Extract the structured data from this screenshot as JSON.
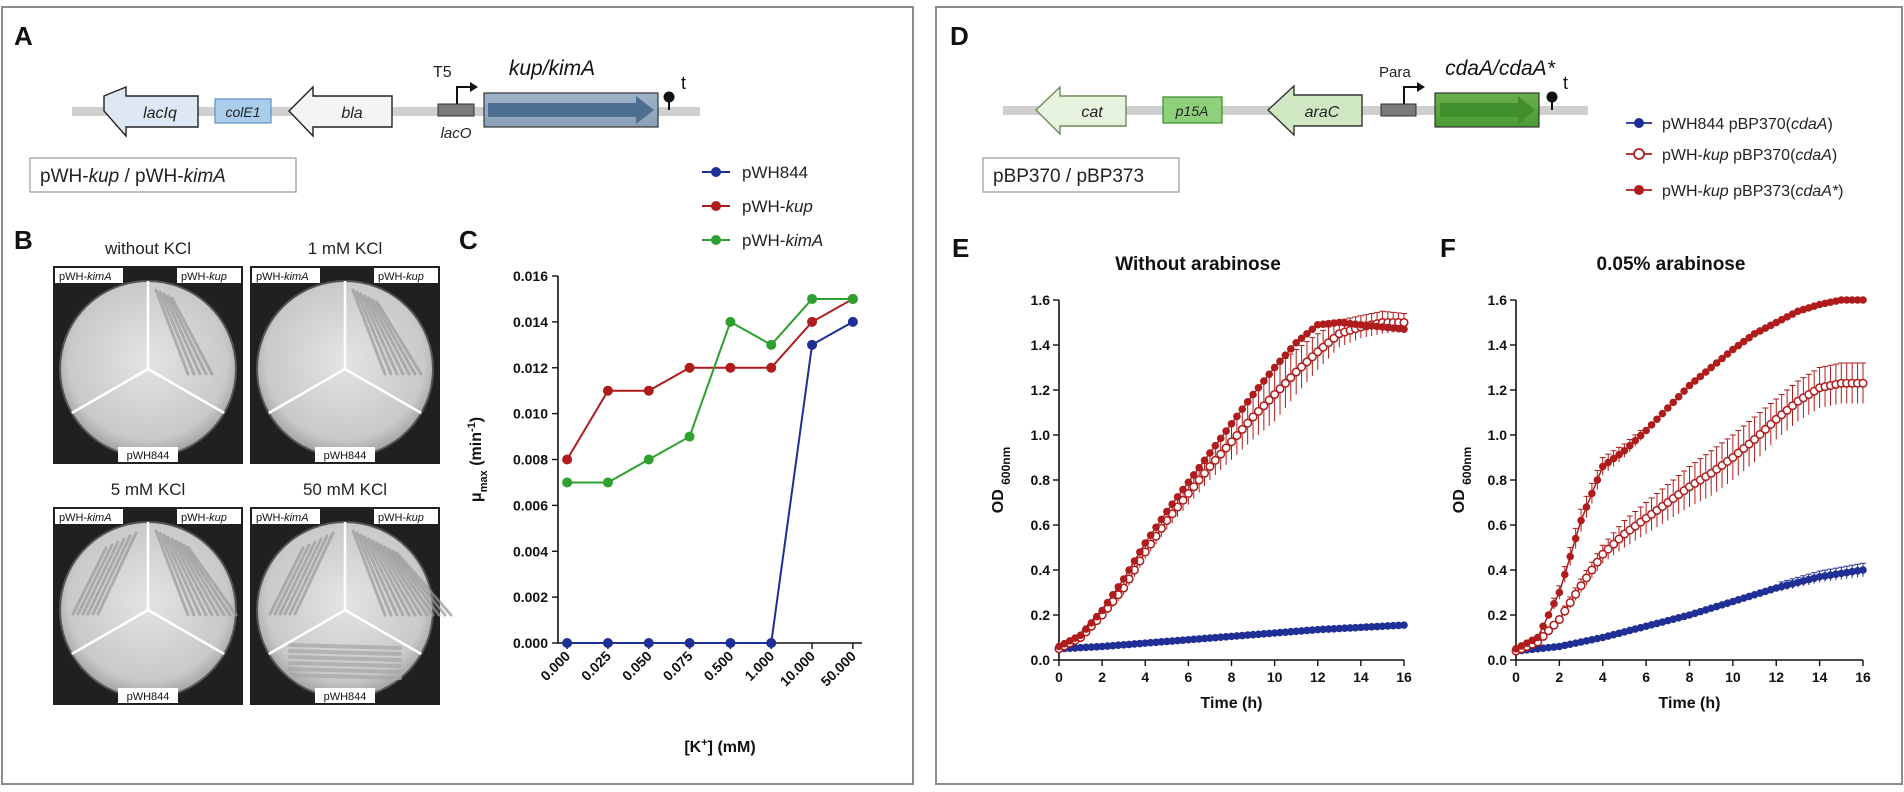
{
  "figure": {
    "panels": {
      "A": {
        "letter": "A",
        "plasmid_label_1": "pWH-",
        "plasmid_gene_1": "kup",
        "plasmid_sep": " / pWH-",
        "plasmid_gene_2": "kimA",
        "genes": {
          "lacIq": "lacIq",
          "colE1": "colE1",
          "bla": "bla",
          "lacO": "lacO",
          "t5": "T5",
          "insert": "kup/kimA",
          "terminator": "t"
        }
      },
      "B": {
        "letter": "B",
        "plates": [
          {
            "title": "without KCl",
            "sector_left": "pWH-",
            "sector_left_gene": "kimA",
            "sector_right": "pWH-",
            "sector_right_gene": "kup",
            "sector_bottom": "pWH844"
          },
          {
            "title": "1 mM KCl",
            "sector_left": "pWH-",
            "sector_left_gene": "kimA",
            "sector_right": "pWH-",
            "sector_right_gene": "kup",
            "sector_bottom": "pWH844"
          },
          {
            "title": "5 mM KCl",
            "sector_left": "pWH-",
            "sector_left_gene": "kimA",
            "sector_right": "pWH-",
            "sector_right_gene": "kup",
            "sector_bottom": "pWH844"
          },
          {
            "title": "50 mM KCl",
            "sector_left": "pWH-",
            "sector_left_gene": "kimA",
            "sector_right": "pWH-",
            "sector_right_gene": "kup",
            "sector_bottom": "pWH844"
          }
        ]
      },
      "C": {
        "letter": "C"
      },
      "D": {
        "letter": "D",
        "plasmid_label": "pBP370 / pBP373",
        "genes": {
          "cat": "cat",
          "p15A": "p15A",
          "araC": "araC",
          "para": "Para",
          "insert": "cdaA/cdaA*",
          "terminator": "t"
        },
        "legend": [
          {
            "prefix": "pWH844 pBP370(",
            "gene": "cdaA",
            "suffix": ")"
          },
          {
            "prefix": "pWH-",
            "gene_a": "kup",
            "middle": " pBP370(",
            "gene": "cdaA",
            "suffix": ")"
          },
          {
            "prefix": "pWH-",
            "gene_a": "kup",
            "middle": " pBP373(",
            "gene": "cdaA*",
            "suffix": ")"
          }
        ]
      },
      "E": {
        "letter": "E"
      },
      "F": {
        "letter": "F"
      }
    },
    "colors": {
      "blue": "#1f2f96",
      "red": "#b01b1b",
      "green": "#2ea02e",
      "panel_border": "#8c8c8c"
    }
  },
  "chart_data": [
    {
      "id": "C",
      "type": "line",
      "title": "",
      "xlabel": "[K+] (mM)",
      "ylabel": "μmax (min-1)",
      "categories": [
        "0.000",
        "0.025",
        "0.050",
        "0.075",
        "0.500",
        "1.000",
        "10.000",
        "50.000"
      ],
      "ylim": [
        0,
        0.016
      ],
      "yticks": [
        "0.000",
        "0.002",
        "0.004",
        "0.006",
        "0.008",
        "0.010",
        "0.012",
        "0.014",
        "0.016"
      ],
      "series": [
        {
          "name": "pWH844",
          "color": "#1f2f96",
          "values": [
            0,
            0,
            0,
            0,
            0,
            0,
            0.013,
            0.014
          ]
        },
        {
          "name": "pWH-kup",
          "color": "#b01b1b",
          "values": [
            0.008,
            0.011,
            0.011,
            0.012,
            0.012,
            0.012,
            0.014,
            0.015
          ]
        },
        {
          "name": "pWH-kimA",
          "color": "#2ea02e",
          "values": [
            0.007,
            0.007,
            0.008,
            0.009,
            0.014,
            0.013,
            0.015,
            0.015
          ]
        }
      ],
      "legend": "top-right"
    },
    {
      "id": "E",
      "type": "line",
      "title": "Without arabinose",
      "xlabel": "Time (h)",
      "ylabel": "OD 600nm",
      "xlim": [
        0,
        16
      ],
      "ylim": [
        0,
        1.6
      ],
      "xticks": [
        "0",
        "2",
        "4",
        "6",
        "8",
        "10",
        "12",
        "14",
        "16"
      ],
      "yticks": [
        "0.0",
        "0.2",
        "0.4",
        "0.6",
        "0.8",
        "1.0",
        "1.2",
        "1.4",
        "1.6"
      ],
      "series": [
        {
          "name": "pWH844 pBP370(cdaA)",
          "color": "#1f2f96",
          "marker": "filled",
          "x": [
            0,
            2,
            4,
            6,
            8,
            10,
            12,
            14,
            16
          ],
          "y": [
            0.05,
            0.06,
            0.075,
            0.09,
            0.105,
            0.12,
            0.135,
            0.145,
            0.155
          ],
          "err": [
            0.01,
            0.01,
            0.01,
            0.01,
            0.01,
            0.015,
            0.015,
            0.02,
            0.02
          ]
        },
        {
          "name": "pWH-kup pBP370(cdaA)",
          "color": "#b01b1b",
          "marker": "open",
          "x": [
            0,
            1,
            2,
            3,
            4,
            5,
            6,
            7,
            8,
            9,
            10,
            11,
            12,
            13,
            14,
            15,
            16
          ],
          "y": [
            0.05,
            0.1,
            0.2,
            0.32,
            0.48,
            0.62,
            0.74,
            0.86,
            0.97,
            1.08,
            1.18,
            1.28,
            1.37,
            1.45,
            1.48,
            1.5,
            1.5
          ],
          "err": [
            0.01,
            0.02,
            0.02,
            0.03,
            0.03,
            0.04,
            0.05,
            0.06,
            0.08,
            0.1,
            0.12,
            0.1,
            0.08,
            0.06,
            0.05,
            0.05,
            0.04
          ]
        },
        {
          "name": "pWH-kup pBP373(cdaA*)",
          "color": "#b01b1b",
          "marker": "filled",
          "x": [
            0,
            1,
            2,
            3,
            4,
            5,
            6,
            7,
            8,
            9,
            10,
            11,
            12,
            13,
            14,
            15,
            16
          ],
          "y": [
            0.06,
            0.11,
            0.22,
            0.36,
            0.52,
            0.66,
            0.79,
            0.92,
            1.05,
            1.18,
            1.3,
            1.41,
            1.49,
            1.5,
            1.49,
            1.48,
            1.47
          ],
          "err": [
            0.01,
            0.01,
            0.02,
            0.02,
            0.02,
            0.02,
            0.02,
            0.02,
            0.02,
            0.02,
            0.02,
            0.02,
            0.02,
            0.02,
            0.02,
            0.02,
            0.02
          ]
        }
      ]
    },
    {
      "id": "F",
      "type": "line",
      "title": "0.05% arabinose",
      "xlabel": "Time (h)",
      "ylabel": "OD 600nm",
      "xlim": [
        0,
        16
      ],
      "ylim": [
        0,
        1.6
      ],
      "xticks": [
        "0",
        "2",
        "4",
        "6",
        "8",
        "10",
        "12",
        "14",
        "16"
      ],
      "yticks": [
        "0.0",
        "0.2",
        "0.4",
        "0.6",
        "0.8",
        "1.0",
        "1.2",
        "1.4",
        "1.6"
      ],
      "series": [
        {
          "name": "pWH844 pBP370(cdaA)",
          "color": "#1f2f96",
          "marker": "filled",
          "x": [
            0,
            2,
            4,
            6,
            8,
            10,
            12,
            14,
            16
          ],
          "y": [
            0.04,
            0.06,
            0.1,
            0.15,
            0.2,
            0.26,
            0.32,
            0.37,
            0.4
          ],
          "err": [
            0.01,
            0.01,
            0.01,
            0.01,
            0.015,
            0.015,
            0.02,
            0.025,
            0.03
          ]
        },
        {
          "name": "pWH-kup pBP370(cdaA)",
          "color": "#b01b1b",
          "marker": "open",
          "x": [
            0,
            1,
            2,
            3,
            4,
            5,
            6,
            7,
            8,
            9,
            10,
            11,
            12,
            13,
            14,
            15,
            16
          ],
          "y": [
            0.04,
            0.08,
            0.18,
            0.33,
            0.47,
            0.56,
            0.63,
            0.7,
            0.77,
            0.83,
            0.9,
            0.98,
            1.07,
            1.15,
            1.21,
            1.23,
            1.23
          ],
          "err": [
            0.01,
            0.02,
            0.02,
            0.03,
            0.04,
            0.06,
            0.07,
            0.08,
            0.09,
            0.1,
            0.1,
            0.1,
            0.09,
            0.09,
            0.09,
            0.09,
            0.09
          ]
        },
        {
          "name": "pWH-kup pBP373(cdaA*)",
          "color": "#b01b1b",
          "marker": "filled",
          "x": [
            0,
            1,
            2,
            3,
            4,
            5,
            6,
            7,
            8,
            9,
            10,
            11,
            12,
            13,
            14,
            15,
            16
          ],
          "y": [
            0.05,
            0.1,
            0.3,
            0.62,
            0.86,
            0.93,
            1.02,
            1.12,
            1.22,
            1.3,
            1.38,
            1.45,
            1.5,
            1.55,
            1.58,
            1.6,
            1.6
          ],
          "err": [
            0.01,
            0.01,
            0.03,
            0.05,
            0.04,
            0.03,
            0.02,
            0.02,
            0.02,
            0.02,
            0.02,
            0.02,
            0.02,
            0.02,
            0.01,
            0.01,
            0.01
          ]
        }
      ]
    }
  ]
}
